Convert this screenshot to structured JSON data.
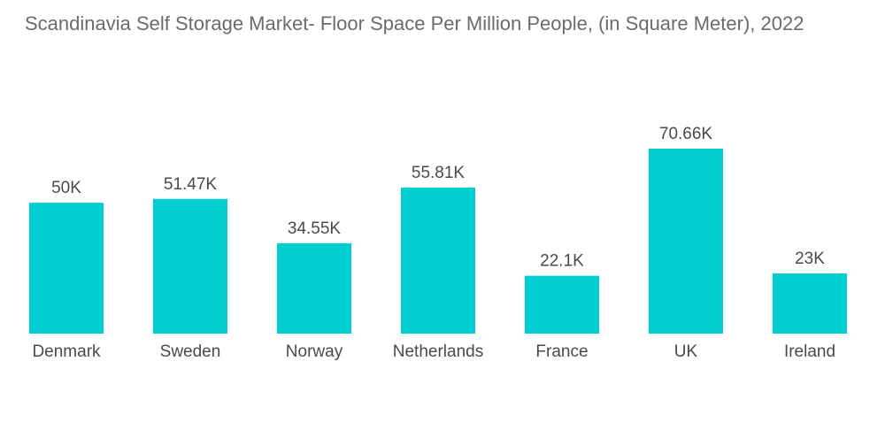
{
  "chart_data": {
    "type": "bar",
    "title": "Scandinavia Self Storage Market- Floor Space Per Million People, (in Square Meter), 2022",
    "xlabel": "",
    "ylabel": "",
    "categories": [
      "Denmark",
      "Sweden",
      "Norway",
      "Netherlands",
      "France",
      "UK",
      "Ireland"
    ],
    "values": [
      50000,
      51470,
      34550,
      55810,
      22100,
      70660,
      23000
    ],
    "data_labels": [
      "50K",
      "51.47K",
      "34.55K",
      "55.81K",
      "22.1K",
      "70.66K",
      "23K"
    ],
    "ylim": [
      0,
      80000
    ],
    "grid": false,
    "legend": "none",
    "bar_color": "#00ced1",
    "text_color": "#4a4a4a",
    "title_color": "#6b6b6b"
  }
}
